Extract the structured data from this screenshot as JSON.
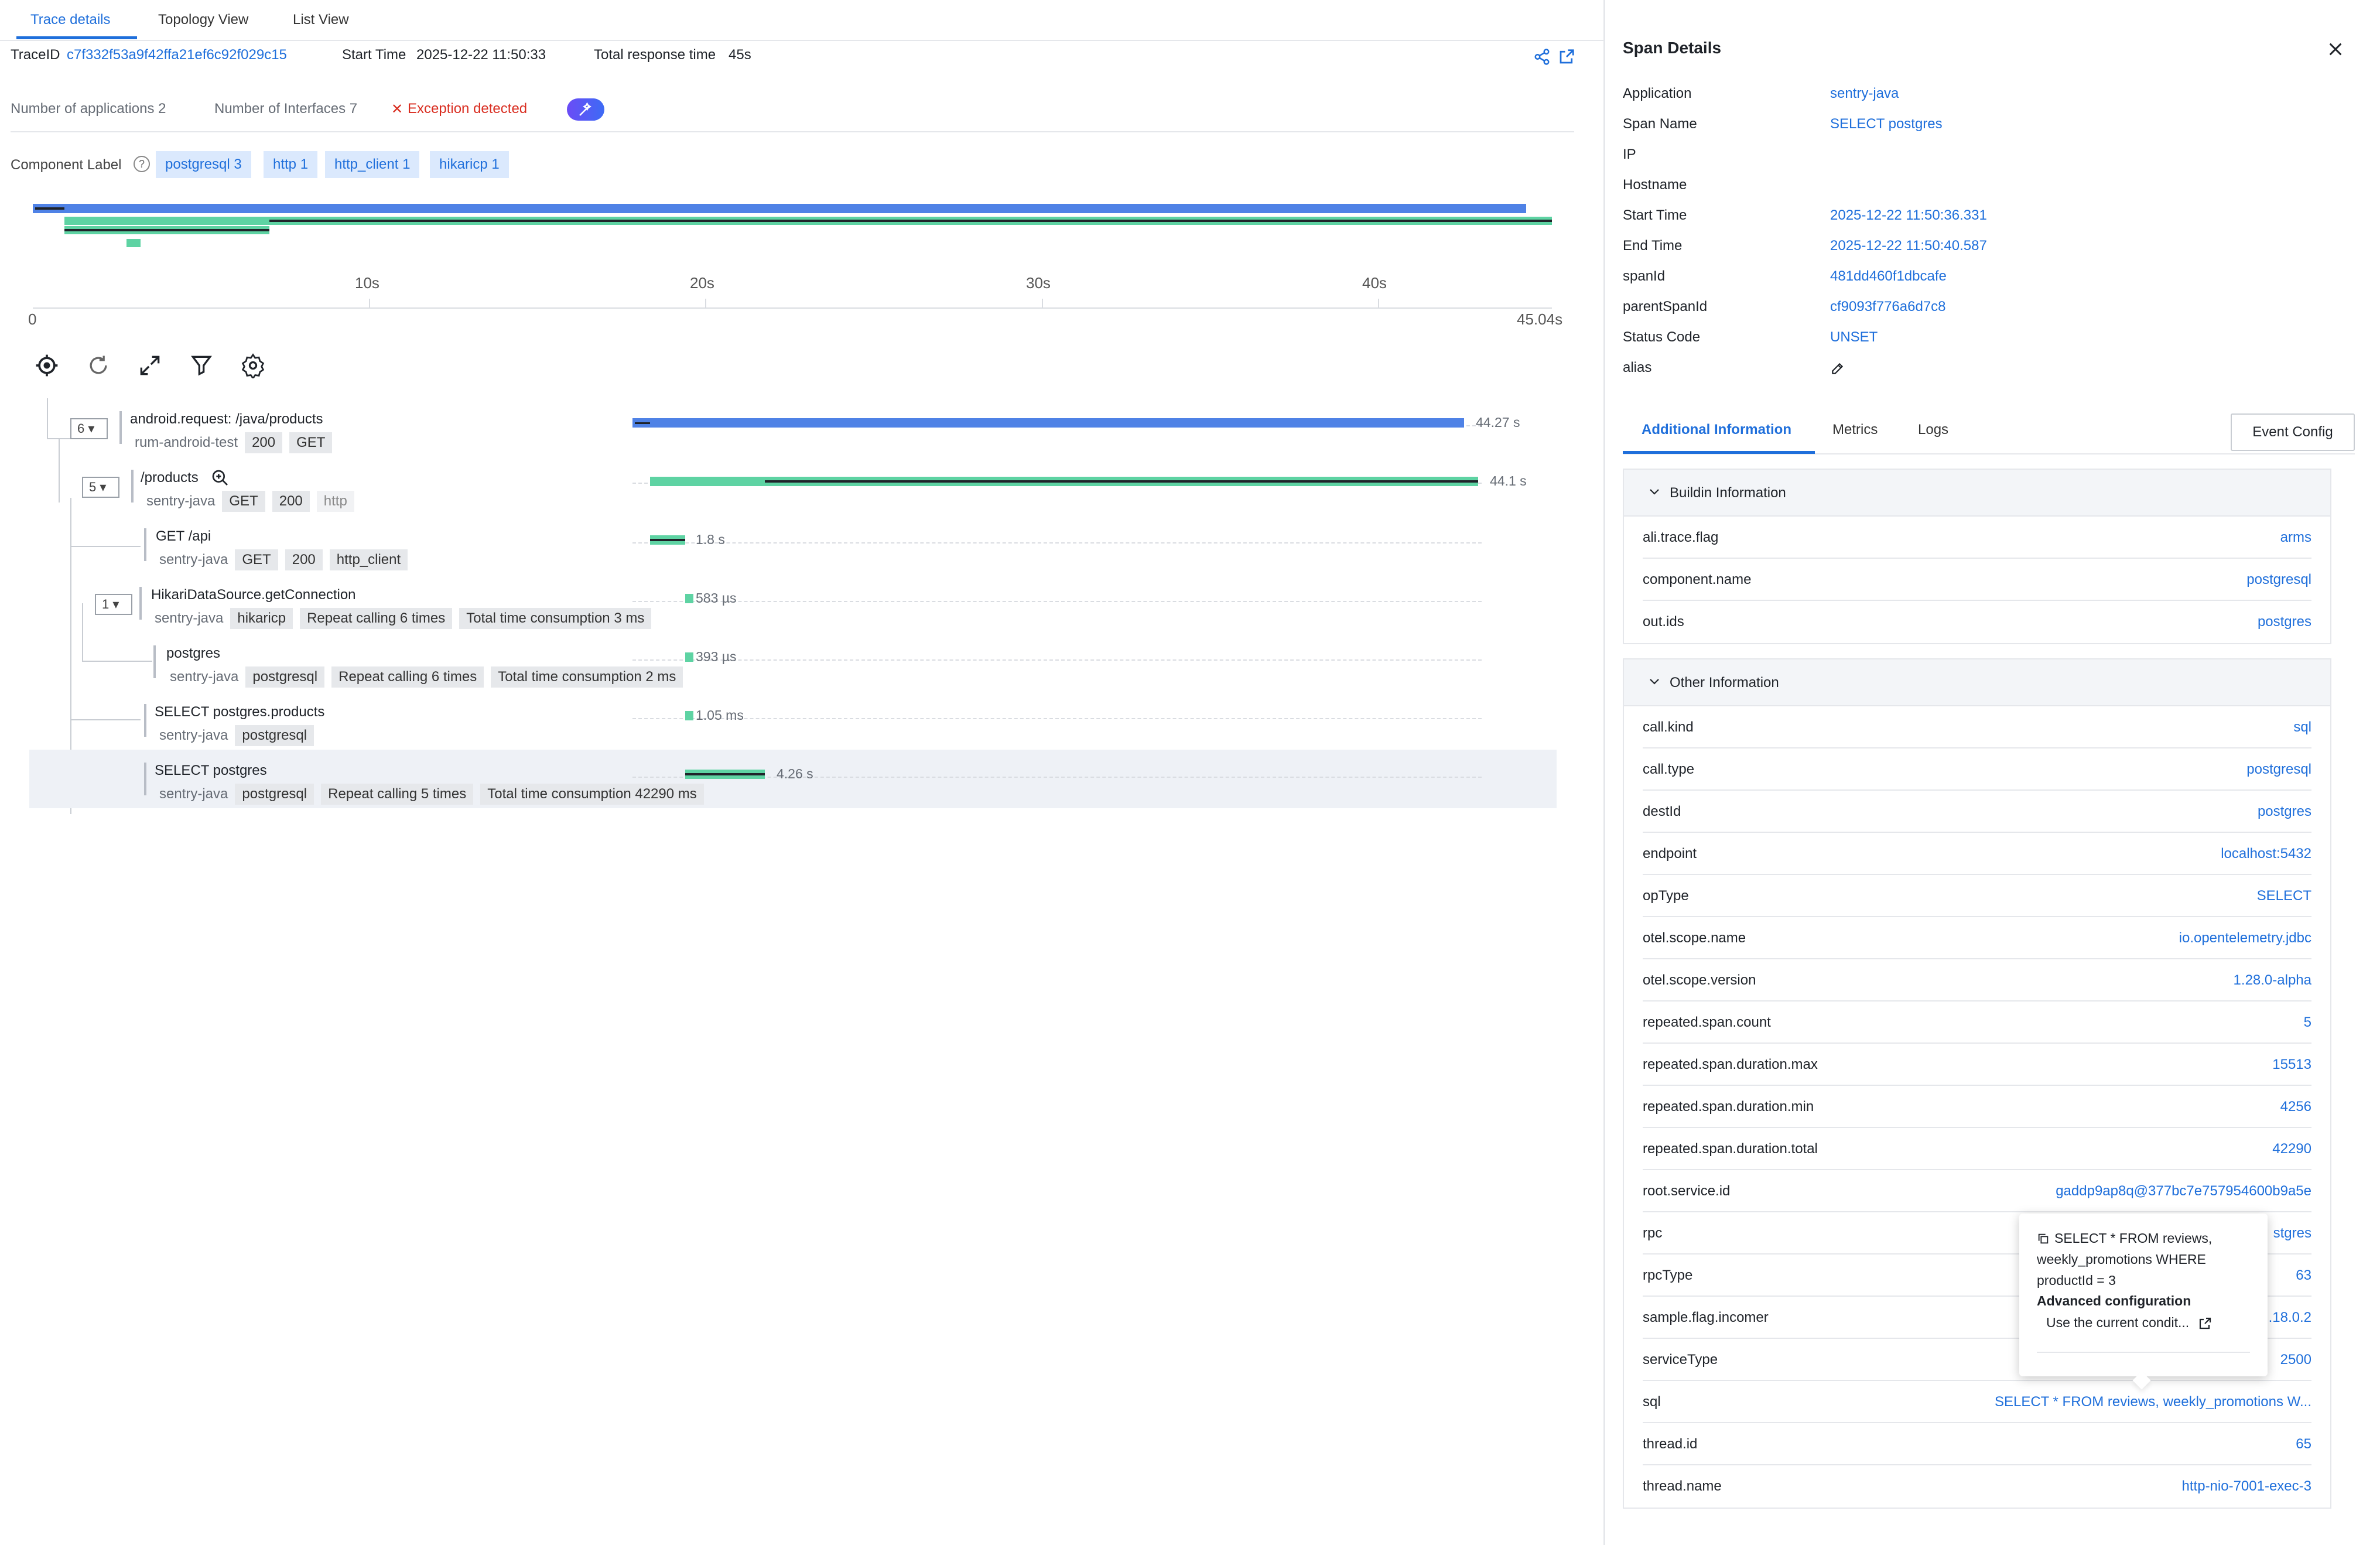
{
  "tabs": [
    "Trace details",
    "Topology View",
    "List View"
  ],
  "trace": {
    "id_label": "TraceID",
    "id_value": "c7f332f53a9f42ffa21ef6c92f029c15",
    "start_label": "Start Time",
    "start_value": "2025-12-22 11:50:33",
    "total_label": "Total response time",
    "total_value": "45s"
  },
  "stats": {
    "apps": "Number of applications 2",
    "interfaces": "Number of Interfaces 7",
    "exception": "Exception detected"
  },
  "component": {
    "label": "Component Label",
    "chips": [
      "postgresql 3",
      "http 1",
      "http_client 1",
      "hikaricp 1"
    ]
  },
  "timeline": {
    "ticks": [
      "10s",
      "20s",
      "30s",
      "40s"
    ],
    "start": "0",
    "end": "45.04s"
  },
  "toolbar_icons": [
    "locate-icon",
    "refresh-icon",
    "expand-icon",
    "filter-icon",
    "settings-icon"
  ],
  "spans": [
    {
      "count": "6",
      "name": "android.request: /java/products",
      "service": "rum-android-test",
      "tags": [
        "200",
        "GET"
      ],
      "duration": "44.27 s",
      "start_s": 0.0,
      "dur_s": 44.27,
      "color": "#4f82e6"
    },
    {
      "count": "5",
      "name": "/products",
      "service": "sentry-java",
      "tags": [
        "GET",
        "200",
        "http"
      ],
      "duration": "44.1 s",
      "start_s": 0.5,
      "dur_s": 44.1,
      "color": "#5ed3a3"
    },
    {
      "count": "",
      "name": "GET /api",
      "service": "sentry-java",
      "tags": [
        "GET",
        "200",
        "http_client"
      ],
      "duration": "1.8 s",
      "start_s": 0.5,
      "dur_s": 1.8,
      "color": "#5ed3a3"
    },
    {
      "count": "1",
      "name": "HikariDataSource.getConnection",
      "service": "sentry-java",
      "tags": [
        "hikaricp",
        "Repeat calling 6 times",
        "Total time consumption 3 ms"
      ],
      "duration": "583 µs",
      "start_s": 2.75,
      "dur_s": 0.000583,
      "color": "#5ed3a3"
    },
    {
      "count": "",
      "name": "postgres",
      "service": "sentry-java",
      "tags": [
        "postgresql",
        "Repeat calling 6 times",
        "Total time consumption 2 ms"
      ],
      "duration": "393 µs",
      "start_s": 2.75,
      "dur_s": 0.000393,
      "color": "#5ed3a3"
    },
    {
      "count": "",
      "name": "SELECT postgres.products",
      "service": "sentry-java",
      "tags": [
        "postgresql"
      ],
      "duration": "1.05 ms",
      "start_s": 2.75,
      "dur_s": 0.00105,
      "color": "#5ed3a3"
    },
    {
      "count": "",
      "name": "SELECT postgres",
      "service": "sentry-java",
      "tags": [
        "postgresql",
        "Repeat calling 5 times",
        "Total time consumption 42290 ms"
      ],
      "duration": "4.26 s",
      "start_s": 2.75,
      "dur_s": 4.26,
      "color": "#5ed3a3"
    }
  ],
  "panel": {
    "title": "Span Details",
    "fields": [
      {
        "k": "Application",
        "v": "sentry-java"
      },
      {
        "k": "Span Name",
        "v": "SELECT postgres"
      },
      {
        "k": "IP",
        "v": ""
      },
      {
        "k": "Hostname",
        "v": ""
      },
      {
        "k": "Start Time",
        "v": "2025-12-22 11:50:36.331"
      },
      {
        "k": "End Time",
        "v": "2025-12-22 11:50:40.587"
      },
      {
        "k": "spanId",
        "v": "481dd460f1dbcafe"
      },
      {
        "k": "parentSpanId",
        "v": "cf9093f776a6d7c8"
      },
      {
        "k": "Status Code",
        "v": "UNSET"
      },
      {
        "k": "alias",
        "v": ""
      }
    ],
    "tabs": [
      "Additional Information",
      "Metrics",
      "Logs"
    ],
    "event_config": "Event Config",
    "buildin": {
      "title": "Buildin Information",
      "rows": [
        {
          "k": "ali.trace.flag",
          "v": "arms"
        },
        {
          "k": "component.name",
          "v": "postgresql"
        },
        {
          "k": "out.ids",
          "v": "postgres"
        }
      ]
    },
    "other": {
      "title": "Other Information",
      "rows": [
        {
          "k": "call.kind",
          "v": "sql"
        },
        {
          "k": "call.type",
          "v": "postgresql"
        },
        {
          "k": "destId",
          "v": "postgres"
        },
        {
          "k": "endpoint",
          "v": "localhost:5432"
        },
        {
          "k": "opType",
          "v": "SELECT"
        },
        {
          "k": "otel.scope.name",
          "v": "io.opentelemetry.jdbc"
        },
        {
          "k": "otel.scope.version",
          "v": "1.28.0-alpha"
        },
        {
          "k": "repeated.span.count",
          "v": "5"
        },
        {
          "k": "repeated.span.duration.max",
          "v": "15513"
        },
        {
          "k": "repeated.span.duration.min",
          "v": "4256"
        },
        {
          "k": "repeated.span.duration.total",
          "v": "42290"
        },
        {
          "k": "root.service.id",
          "v": "gaddp9ap8q@377bc7e757954600b9a5e"
        },
        {
          "k": "rpc",
          "v": "stgres"
        },
        {
          "k": "rpcType",
          "v": "63"
        },
        {
          "k": "sample.flag.incomer",
          "v": ".18.0.2"
        },
        {
          "k": "serviceType",
          "v": "2500"
        },
        {
          "k": "sql",
          "v": "SELECT * FROM reviews, weekly_promotions W..."
        },
        {
          "k": "thread.id",
          "v": "65"
        },
        {
          "k": "thread.name",
          "v": "http-nio-7001-exec-3"
        }
      ]
    }
  },
  "popover": {
    "sql": "SELECT * FROM reviews, weekly_promotions WHERE productId = 3",
    "advanced": "Advanced configuration",
    "use": "Use the current condit..."
  }
}
